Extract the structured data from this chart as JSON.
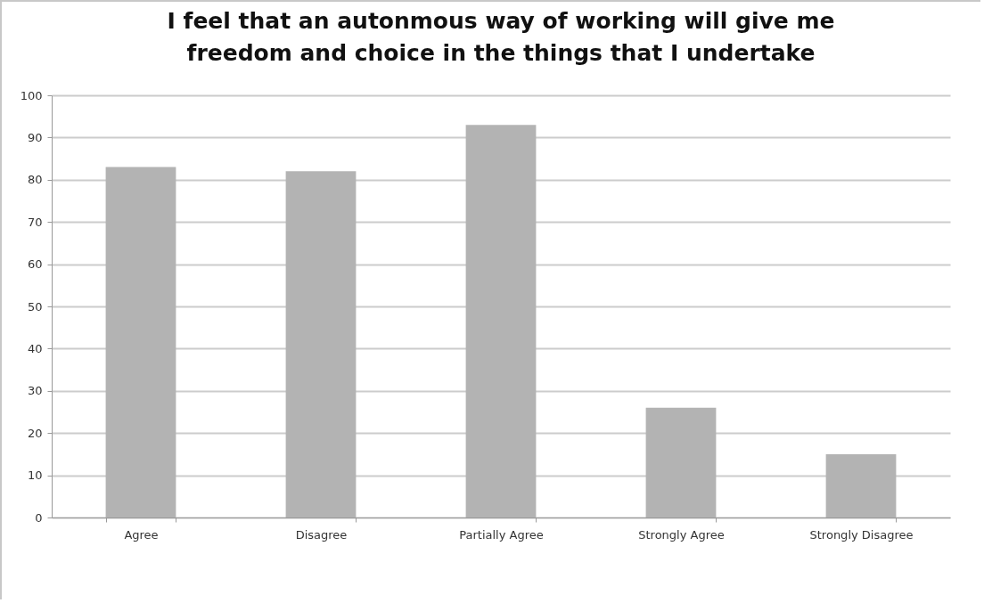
{
  "chart_data": {
    "type": "bar",
    "title": [
      "I feel that an autonmous way of working will give me",
      "freedom and choice in the things that I undertake"
    ],
    "categories": [
      "Agree",
      "Disagree",
      "Partially Agree",
      "Strongly Agree",
      "Strongly Disagree"
    ],
    "values": [
      83,
      82,
      93,
      26,
      15
    ],
    "color": "#b3b3b3",
    "ylim": [
      0,
      100
    ],
    "yticks": [
      0,
      10,
      20,
      30,
      40,
      50,
      60,
      70,
      80,
      90,
      100
    ],
    "grid": "y"
  }
}
